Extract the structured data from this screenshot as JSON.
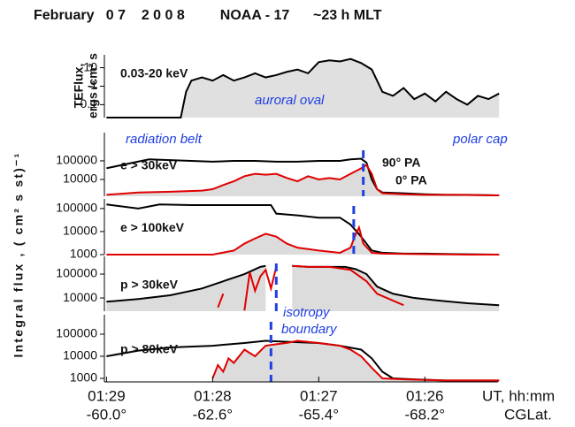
{
  "chart_data": {
    "type": "line",
    "title": "February   0 7    2 0 0 8         NOAA - 17      ~23 h MLT",
    "x_label": "UT, hh:mm",
    "x2_label": "CGLat.",
    "xlim": [
      -0.02,
      3.69
    ],
    "xticks": [
      {
        "value": 0,
        "label": "01:29"
      },
      {
        "value": 1,
        "label": "01:28"
      },
      {
        "value": 2,
        "label": "01:27"
      },
      {
        "value": 3,
        "label": "01:26"
      }
    ],
    "lat_labels": [
      "-60.0°",
      "-62.6°",
      "-65.4°",
      "-68.2°"
    ],
    "y_label_top": [
      "TEFlux,",
      "ergs /cm² s"
    ],
    "y_label": "Integral flux , ( cm² s st)⁻¹",
    "annotations": [
      "radiation belt",
      "polar cap",
      "isotropy",
      "boundary"
    ],
    "boundary_color": "#1f3fe0",
    "panels": [
      {
        "label": "0.03-20 keV",
        "annotation": "auroral oval",
        "log_y": true,
        "ylim": [
          0.02,
          50
        ],
        "yticks": [
          10,
          1,
          0.1
        ],
        "series": [
          {
            "name": "TEFlux",
            "color": "#000000",
            "fill": "#e0e0e0",
            "x": [
              0,
              0.7,
              0.75,
              0.8,
              0.9,
              1.0,
              1.1,
              1.2,
              1.3,
              1.4,
              1.5,
              1.6,
              1.7,
              1.8,
              1.9,
              2.0,
              2.1,
              2.2,
              2.3,
              2.4,
              2.5,
              2.55,
              2.6,
              2.7,
              2.8,
              2.9,
              3.0,
              3.1,
              3.2,
              3.3,
              3.4,
              3.5,
              3.6,
              3.7
            ],
            "values": [
              0.02,
              0.02,
              0.5,
              2,
              3,
              2,
              4,
              2,
              3,
              5,
              3,
              4,
              6,
              8,
              5,
              20,
              25,
              22,
              30,
              18,
              8,
              2,
              0.5,
              0.3,
              0.8,
              0.2,
              0.4,
              0.15,
              0.5,
              0.2,
              0.1,
              0.3,
              0.2,
              0.4
            ]
          }
        ]
      },
      {
        "label": "e > 30keV",
        "log_y": true,
        "ylim": [
          1250,
          3300000
        ],
        "yticks": [
          100000,
          10000
        ],
        "boundary_x": 2.42,
        "series": [
          {
            "name": "90° PA",
            "color": "#000000",
            "x": [
              0,
              0.2,
              0.4,
              0.6,
              0.8,
              1.0,
              1.2,
              1.4,
              1.6,
              1.8,
              2.0,
              2.2,
              2.3,
              2.4,
              2.45,
              2.5,
              2.55,
              2.6,
              2.8,
              3.0,
              3.2,
              3.4,
              3.7
            ],
            "values": [
              40000,
              70000,
              120000,
              110000,
              100000,
              90000,
              100000,
              100000,
              90000,
              90000,
              100000,
              100000,
              120000,
              130000,
              80000,
              10000,
              3000,
              2000,
              1800,
              1600,
              1500,
              1500,
              1400
            ]
          },
          {
            "name": "0° PA",
            "color": "#e00000",
            "fill": "#dcdcdc",
            "x": [
              0,
              0.3,
              0.6,
              0.9,
              1.0,
              1.1,
              1.2,
              1.3,
              1.4,
              1.5,
              1.6,
              1.7,
              1.8,
              1.9,
              2.0,
              2.1,
              2.2,
              2.3,
              2.4,
              2.45,
              2.5,
              2.55,
              2.6,
              2.8,
              3.0,
              3.3,
              3.7
            ],
            "values": [
              1500,
              2000,
              2200,
              2500,
              3000,
              5000,
              8000,
              15000,
              20000,
              18000,
              20000,
              12000,
              8000,
              15000,
              10000,
              12000,
              10000,
              20000,
              40000,
              60000,
              20000,
              3000,
              1800,
              1600,
              1500,
              1500,
              1400
            ]
          }
        ]
      },
      {
        "label": "e > 100keV",
        "log_y": true,
        "ylim": [
          1000,
          260000
        ],
        "yticks": [
          100000,
          10000,
          1000
        ],
        "boundary_x": 2.33,
        "series": [
          {
            "name": "90° PA",
            "color": "#000000",
            "x": [
              0,
              0.3,
              0.5,
              0.8,
              1.2,
              1.55,
              1.6,
              1.8,
              2.0,
              2.2,
              2.3,
              2.4,
              2.45,
              2.5,
              2.6,
              2.8,
              3.0,
              3.3,
              3.7
            ],
            "values": [
              150000,
              100000,
              150000,
              140000,
              140000,
              140000,
              60000,
              50000,
              40000,
              40000,
              20000,
              6000,
              3000,
              1500,
              1200,
              1100,
              1100,
              1050,
              1000
            ]
          },
          {
            "name": "0° PA",
            "color": "#e00000",
            "fill": "#dcdcdc",
            "x": [
              0,
              0.5,
              1.0,
              1.2,
              1.3,
              1.4,
              1.5,
              1.6,
              1.7,
              1.8,
              2.0,
              2.2,
              2.3,
              2.35,
              2.38,
              2.42,
              2.5,
              2.6,
              3.0,
              3.4,
              3.7
            ],
            "values": [
              1000,
              1000,
              1000,
              1500,
              3000,
              5000,
              8000,
              6000,
              3000,
              2000,
              1500,
              1200,
              2000,
              8000,
              15000,
              3000,
              1200,
              1100,
              1050,
              1000,
              1000
            ]
          }
        ]
      },
      {
        "label": "p > 30keV",
        "log_y": true,
        "ylim": [
          2800,
          550000
        ],
        "yticks": [
          100000,
          10000
        ],
        "boundary_x": 1.6,
        "series": [
          {
            "name": "90° PA",
            "color": "#000000",
            "fill": "#dcdcdc",
            "x": [
              0,
              0.3,
              0.6,
              0.9,
              1.1,
              1.3,
              1.45,
              1.5,
              1.55,
              1.75,
              1.9,
              2.1,
              2.25,
              2.35,
              2.45,
              2.55,
              2.7,
              2.9,
              3.1,
              3.4,
              3.7
            ],
            "values": [
              7000,
              9000,
              13000,
              25000,
              50000,
              100000,
              200000,
              220000,
              null,
              220000,
              200000,
              200000,
              200000,
              160000,
              100000,
              30000,
              15000,
              10000,
              8000,
              6000,
              5000
            ]
          },
          {
            "name": "0° PA",
            "color": "#e00000",
            "x": [
              1.05,
              1.1,
              1.25,
              1.3,
              1.35,
              1.4,
              1.45,
              1.5,
              1.55,
              1.6,
              1.65,
              1.75,
              1.9,
              2.1,
              2.3,
              2.45,
              2.55,
              2.8
            ],
            "values": [
              4000,
              15000,
              null,
              3000,
              120000,
              20000,
              80000,
              150000,
              25000,
              200000,
              null,
              220000,
              200000,
              200000,
              150000,
              50000,
              15000,
              5000
            ]
          }
        ]
      },
      {
        "label": "p > 80keV",
        "log_y": true,
        "ylim": [
          690,
          760000
        ],
        "yticks": [
          100000,
          10000,
          1000
        ],
        "boundary_x": 1.55,
        "series": [
          {
            "name": "90° PA",
            "color": "#000000",
            "x": [
              0,
              0.3,
              0.6,
              1.0,
              1.3,
              1.5,
              1.7,
              2.0,
              2.2,
              2.4,
              2.5,
              2.6,
              2.7,
              2.9,
              3.2,
              3.7
            ],
            "values": [
              10000,
              18000,
              25000,
              30000,
              40000,
              50000,
              45000,
              40000,
              30000,
              20000,
              8000,
              2000,
              1000,
              900,
              800,
              800
            ]
          },
          {
            "name": "0° PA",
            "color": "#e00000",
            "fill": "#dcdcdc",
            "x": [
              1.0,
              1.05,
              1.1,
              1.15,
              1.2,
              1.3,
              1.4,
              1.5,
              1.6,
              1.7,
              1.8,
              2.0,
              2.2,
              2.3,
              2.4,
              2.5,
              2.6,
              2.8,
              3.2,
              3.7
            ],
            "values": [
              1000,
              4000,
              2000,
              8000,
              5000,
              20000,
              10000,
              30000,
              35000,
              40000,
              50000,
              40000,
              30000,
              20000,
              10000,
              3000,
              1000,
              900,
              800,
              800
            ]
          }
        ]
      }
    ]
  }
}
